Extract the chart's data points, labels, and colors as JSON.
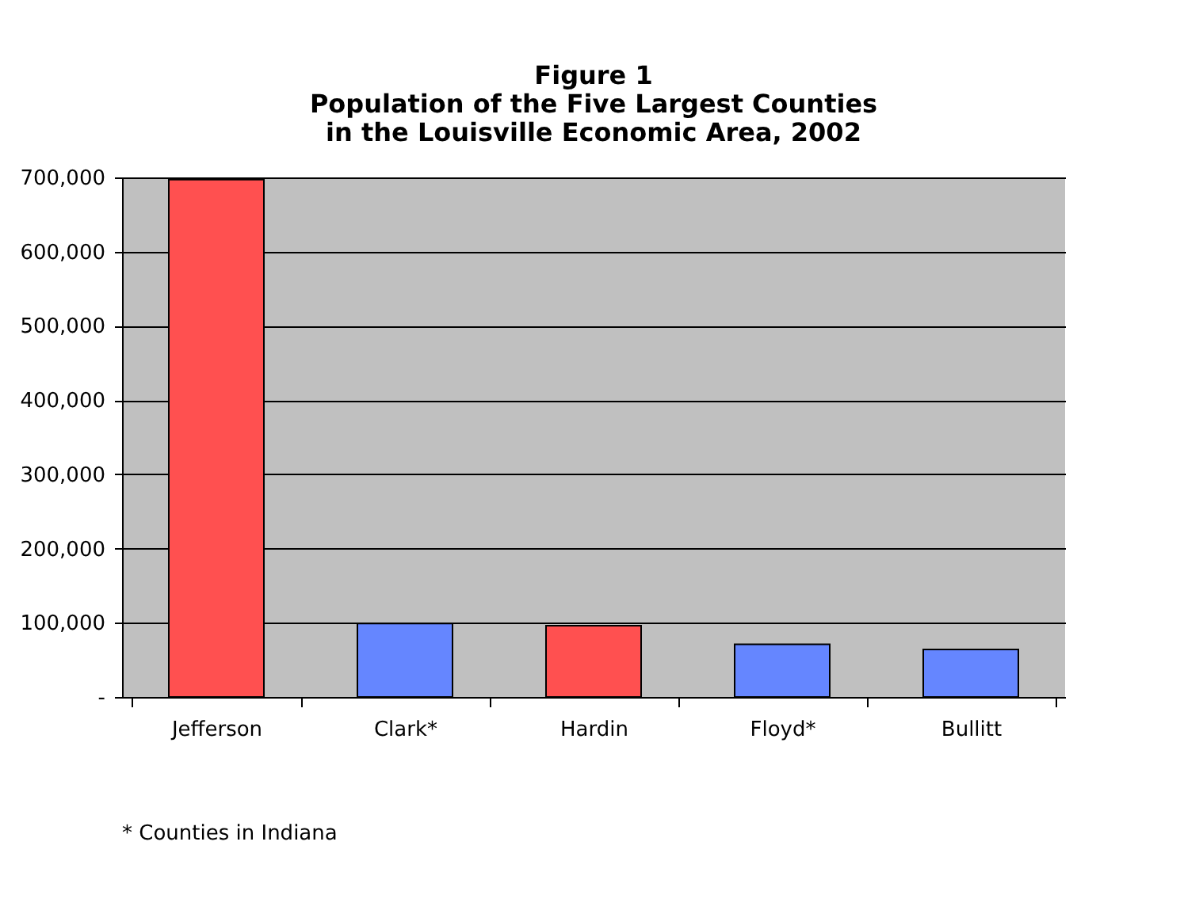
{
  "chart_data": {
    "type": "bar",
    "title": [
      "Figure 1",
      "Population of the Five Largest Counties",
      "in the Louisville Economic Area, 2002"
    ],
    "categories": [
      "Jefferson",
      "Clark*",
      "Hardin",
      "Floyd*",
      "Bullitt"
    ],
    "values": [
      697000,
      99000,
      96000,
      71000,
      64000
    ],
    "colors": [
      "#ff5050",
      "#6586ff",
      "#ff5050",
      "#6586ff",
      "#6586ff"
    ],
    "ylim": [
      0,
      700000
    ],
    "yticks": [
      {
        "value": 0,
        "label": "-"
      },
      {
        "value": 100000,
        "label": "100,000"
      },
      {
        "value": 200000,
        "label": "200,000"
      },
      {
        "value": 300000,
        "label": "300,000"
      },
      {
        "value": 400000,
        "label": "400,000"
      },
      {
        "value": 500000,
        "label": "500,000"
      },
      {
        "value": 600000,
        "label": "600,000"
      },
      {
        "value": 700000,
        "label": "700,000"
      }
    ],
    "grid": "y",
    "annotations": [
      "* Counties in Indiana"
    ]
  }
}
